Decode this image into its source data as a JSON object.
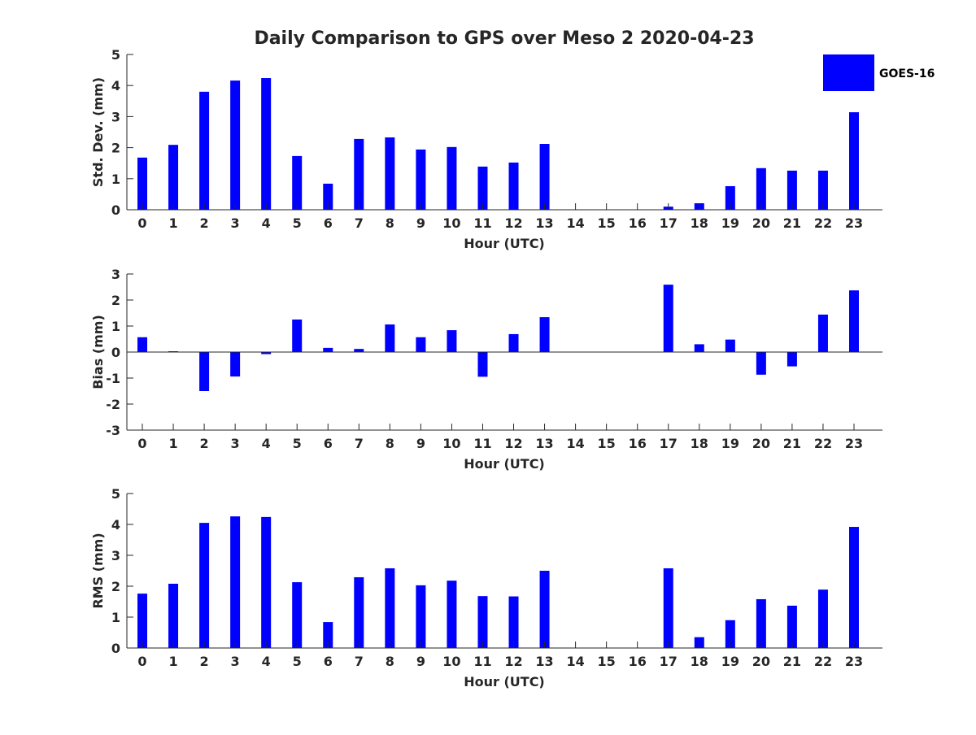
{
  "chart_data": [
    {
      "type": "bar",
      "title": "Daily Comparison to GPS over Meso 2 2020-04-23",
      "xlabel": "Hour (UTC)",
      "ylabel": "Std. Dev. (mm)",
      "ylim": [
        0,
        5
      ],
      "yticks": [
        0,
        1,
        2,
        3,
        4,
        5
      ],
      "categories": [
        0,
        1,
        2,
        3,
        4,
        5,
        6,
        7,
        8,
        9,
        10,
        11,
        12,
        13,
        14,
        15,
        16,
        17,
        18,
        19,
        20,
        21,
        22,
        23
      ],
      "series": [
        {
          "name": "GOES-16",
          "color": "#0000ff",
          "values": [
            1.68,
            2.09,
            3.8,
            4.16,
            4.24,
            1.73,
            0.84,
            2.28,
            2.33,
            1.94,
            2.02,
            1.39,
            1.52,
            2.12,
            0,
            0,
            0,
            0.1,
            0.21,
            0.76,
            1.34,
            1.26,
            1.26,
            3.14
          ]
        }
      ],
      "legend": {
        "position": "top-right",
        "entries": [
          "GOES-16"
        ]
      }
    },
    {
      "type": "bar",
      "xlabel": "Hour (UTC)",
      "ylabel": "Bias (mm)",
      "ylim": [
        -3,
        3
      ],
      "yticks": [
        -3,
        -2,
        -1,
        0,
        1,
        2,
        3
      ],
      "categories": [
        0,
        1,
        2,
        3,
        4,
        5,
        6,
        7,
        8,
        9,
        10,
        11,
        12,
        13,
        14,
        15,
        16,
        17,
        18,
        19,
        20,
        21,
        22,
        23
      ],
      "series": [
        {
          "name": "GOES-16",
          "color": "#0000ff",
          "values": [
            0.57,
            0.03,
            -1.5,
            -0.94,
            -0.08,
            1.25,
            0.16,
            0.12,
            1.06,
            0.57,
            0.84,
            -0.95,
            0.69,
            1.34,
            0,
            0,
            0,
            2.59,
            0.3,
            0.48,
            -0.87,
            -0.55,
            1.44,
            2.37
          ]
        }
      ]
    },
    {
      "type": "bar",
      "xlabel": "Hour (UTC)",
      "ylabel": "RMS (mm)",
      "ylim": [
        0,
        5
      ],
      "yticks": [
        0,
        1,
        2,
        3,
        4,
        5
      ],
      "categories": [
        0,
        1,
        2,
        3,
        4,
        5,
        6,
        7,
        8,
        9,
        10,
        11,
        12,
        13,
        14,
        15,
        16,
        17,
        18,
        19,
        20,
        21,
        22,
        23
      ],
      "series": [
        {
          "name": "GOES-16",
          "color": "#0000ff",
          "values": [
            1.76,
            2.08,
            4.05,
            4.26,
            4.24,
            2.13,
            0.84,
            2.29,
            2.58,
            2.03,
            2.18,
            1.68,
            1.67,
            2.5,
            0,
            0,
            0,
            2.58,
            0.35,
            0.9,
            1.58,
            1.37,
            1.89,
            3.92
          ]
        }
      ]
    }
  ]
}
